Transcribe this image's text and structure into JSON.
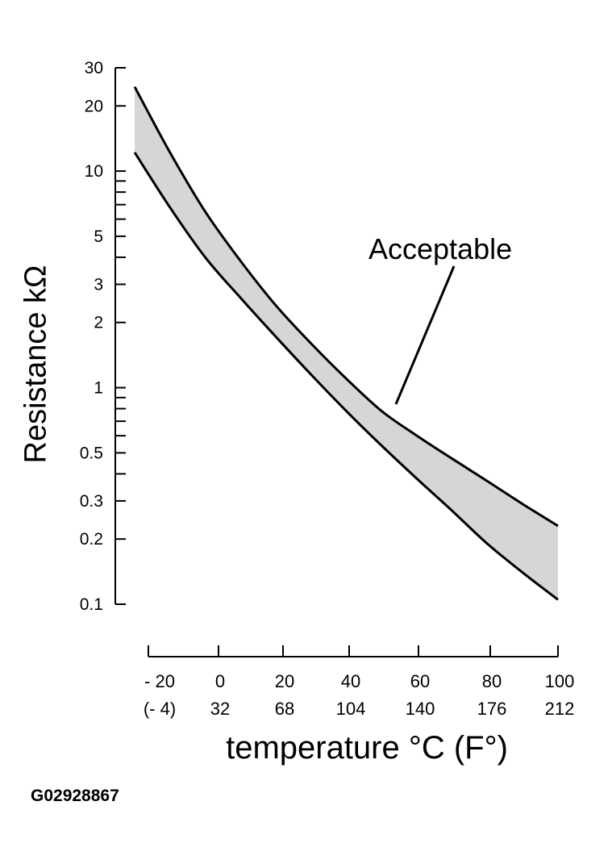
{
  "chart_data": {
    "type": "area",
    "xlabel": "temperature °C (F°)",
    "ylabel": "Resistance kΩ",
    "xlim": [
      -20,
      100
    ],
    "ylim": [
      0.1,
      30
    ],
    "yscale": "log",
    "x_ticks": [
      {
        "c": "- 20",
        "f": "(- 4)"
      },
      {
        "c": "0",
        "f": "32"
      },
      {
        "c": "20",
        "f": "68"
      },
      {
        "c": "40",
        "f": "104"
      },
      {
        "c": "60",
        "f": "140"
      },
      {
        "c": "80",
        "f": "176"
      },
      {
        "c": "100",
        "f": "212"
      }
    ],
    "y_ticks": [
      "30",
      "20",
      "10",
      "5",
      "3",
      "2",
      "1",
      "0.5",
      "0.3",
      "0.2",
      "0.1"
    ],
    "series": [
      {
        "x": [
          -20,
          -10,
          0,
          10,
          20,
          30,
          40,
          50,
          60,
          70,
          80,
          90,
          100
        ],
        "values": [
          24.5,
          12.2,
          6.5,
          3.85,
          2.4,
          1.6,
          1.1,
          0.78,
          0.6,
          0.47,
          0.37,
          0.29,
          0.23
        ]
      },
      {
        "x": [
          -20,
          -10,
          0,
          10,
          20,
          30,
          40,
          50,
          60,
          70,
          80,
          90,
          100
        ],
        "values": [
          12.2,
          6.8,
          4.0,
          2.6,
          1.72,
          1.15,
          0.78,
          0.54,
          0.38,
          0.27,
          0.19,
          0.14,
          0.105
        ]
      }
    ],
    "annotations": [
      "Acceptable"
    ],
    "grid": false,
    "colors": {
      "band": "#d6d6d6",
      "line": "#000000"
    }
  },
  "figure_id": "G02928867"
}
